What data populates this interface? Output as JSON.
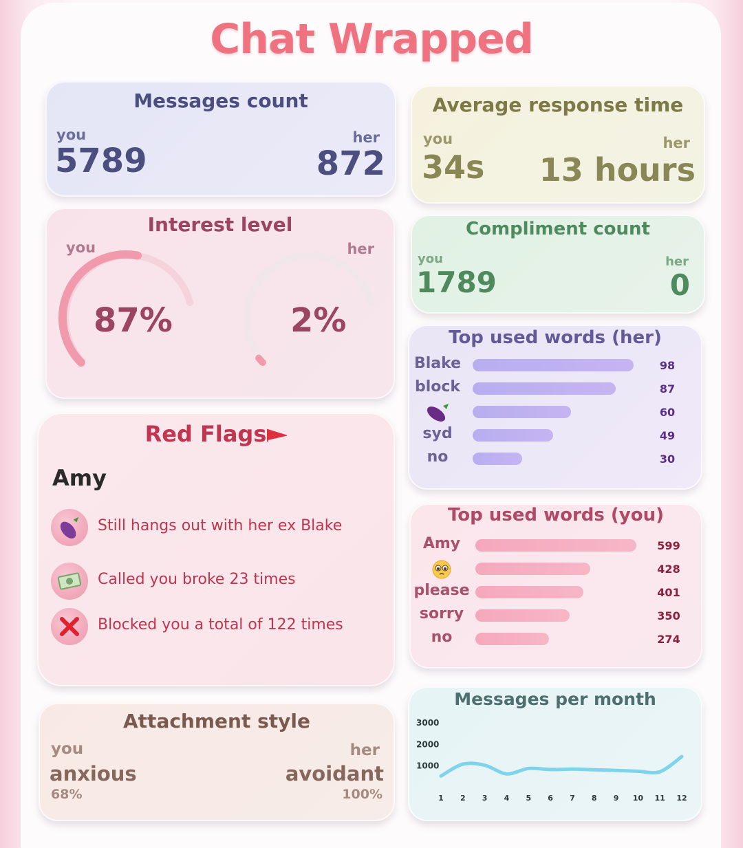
{
  "title": "Chat Wrapped",
  "messages_count": {
    "title": "Messages count",
    "you_label": "you",
    "her_label": "her",
    "you_value": "5789",
    "her_value": "872"
  },
  "response_time": {
    "title": "Average response time",
    "you_label": "you",
    "her_label": "her",
    "you_value": "34s",
    "her_value": "13 hours"
  },
  "interest_level": {
    "title": "Interest level",
    "you_label": "you",
    "her_label": "her",
    "you_value": "87%",
    "her_value": "2%",
    "you_fraction": 0.87,
    "her_fraction": 0.02
  },
  "compliment_count": {
    "title": "Compliment count",
    "you_label": "you",
    "her_label": "her",
    "you_value": "1789",
    "her_value": "0"
  },
  "top_words_her": {
    "title": "Top used words (her)",
    "words": [
      {
        "label": "Blake",
        "count": "98",
        "icon": ""
      },
      {
        "label": "block",
        "count": "87",
        "icon": ""
      },
      {
        "label": "",
        "count": "60",
        "icon": "eggplant-icon"
      },
      {
        "label": "syd",
        "count": "49",
        "icon": ""
      },
      {
        "label": "no",
        "count": "30",
        "icon": ""
      }
    ]
  },
  "top_words_you": {
    "title": "Top used words (you)",
    "words": [
      {
        "label": "Amy",
        "count": "599",
        "icon": ""
      },
      {
        "label": "",
        "count": "428",
        "icon": "pleading-face-icon"
      },
      {
        "label": "please",
        "count": "401",
        "icon": ""
      },
      {
        "label": "sorry",
        "count": "350",
        "icon": ""
      },
      {
        "label": "no",
        "count": "274",
        "icon": ""
      }
    ]
  },
  "red_flags": {
    "title": "Red Flags",
    "name": "Amy",
    "items": [
      {
        "icon": "eggplant-icon",
        "text": "Still hangs out with her ex Blake"
      },
      {
        "icon": "money-icon",
        "text": "Called you broke 23 times"
      },
      {
        "icon": "cross-mark-icon",
        "text": "Blocked you a total of 122 times"
      }
    ]
  },
  "attachment_style": {
    "title": "Attachment style",
    "you_label": "you",
    "her_label": "her",
    "you_style": "anxious",
    "her_style": "avoidant",
    "you_percent": "68%",
    "her_percent": "100%"
  },
  "chart_data": {
    "type": "line",
    "title": "Messages per month",
    "x": [
      1,
      2,
      3,
      4,
      5,
      6,
      7,
      8,
      9,
      10,
      11,
      12
    ],
    "y_ticks": [
      "3000",
      "2000",
      "1000"
    ],
    "ylim": [
      0,
      3000
    ],
    "series": [
      {
        "values": [
          500,
          1050,
          1000,
          600,
          850,
          800,
          820,
          790,
          760,
          720,
          700,
          1400
        ]
      }
    ],
    "colors": {
      "line": "#7fd3ea"
    }
  },
  "colors": {
    "title": "#ef7280",
    "messages": "#4b4e7f",
    "response": "#8a8756",
    "interest": "#9c4562",
    "compliment": "#4f8a5e",
    "her_words": "#625a96",
    "you_words": "#b04966",
    "flags": "#c0354f",
    "attach": "#86675c"
  }
}
